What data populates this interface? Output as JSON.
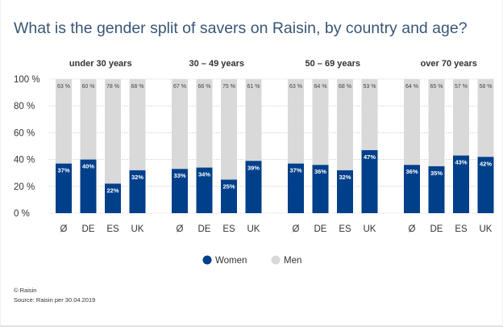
{
  "title": "What is the gender split of savers on Raisin, by country and age?",
  "footer": {
    "copyright": "© Raisin",
    "source": "Source: Raisin per 30.04.2019"
  },
  "colors": {
    "women": "#003f8a",
    "men": "#d9d9d9",
    "text": "#333333",
    "title": "#3a5675",
    "grid": "#b8b8b8"
  },
  "chart_data": {
    "type": "bar",
    "stacked": true,
    "y_axis": {
      "min": 0,
      "max": 100,
      "ticks": [
        0,
        20,
        40,
        60,
        80,
        100
      ],
      "tick_labels": [
        "0 %",
        "20 %",
        "40 %",
        "60 %",
        "80 %",
        "100 %"
      ]
    },
    "legend": {
      "placement": "bottom-center",
      "items": [
        {
          "label": "Women",
          "color": "#003f8a"
        },
        {
          "label": "Men",
          "color": "#d9d9d9"
        }
      ]
    },
    "groups": [
      {
        "label": "under 30 years",
        "categories": [
          "Ø",
          "DE",
          "ES",
          "UK"
        ],
        "women": [
          37,
          40,
          22,
          32
        ],
        "men": [
          63,
          60,
          78,
          68
        ],
        "women_labels": [
          "37%",
          "40%",
          "22%",
          "32%"
        ],
        "men_labels": [
          "63 %",
          "60 %",
          "78 %",
          "68 %"
        ]
      },
      {
        "label": "30 – 49 years",
        "categories": [
          "Ø",
          "DE",
          "ES",
          "UK"
        ],
        "women": [
          33,
          34,
          25,
          39
        ],
        "men": [
          67,
          66,
          75,
          61
        ],
        "women_labels": [
          "33%",
          "34%",
          "25%",
          "39%"
        ],
        "men_labels": [
          "67 %",
          "66 %",
          "75 %",
          "61 %"
        ]
      },
      {
        "label": "50 – 69 years",
        "categories": [
          "Ø",
          "DE",
          "ES",
          "UK"
        ],
        "women": [
          37,
          36,
          32,
          47
        ],
        "men": [
          63,
          64,
          68,
          53
        ],
        "women_labels": [
          "37%",
          "36%",
          "32%",
          "47%"
        ],
        "men_labels": [
          "63 %",
          "64 %",
          "68 %",
          "53 %"
        ]
      },
      {
        "label": "over 70 years",
        "categories": [
          "Ø",
          "DE",
          "ES",
          "UK"
        ],
        "women": [
          36,
          35,
          43,
          42
        ],
        "men": [
          64,
          65,
          57,
          58
        ],
        "women_labels": [
          "36%",
          "35%",
          "43%",
          "42%"
        ],
        "men_labels": [
          "64 %",
          "65 %",
          "57 %",
          "58 %"
        ]
      }
    ]
  }
}
